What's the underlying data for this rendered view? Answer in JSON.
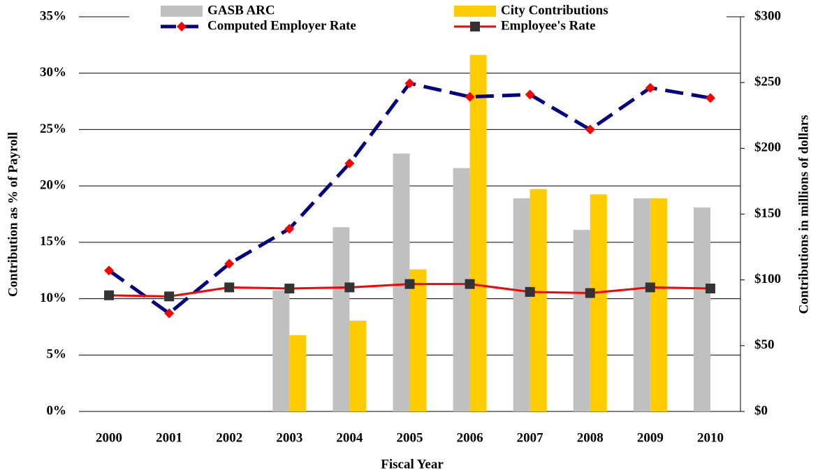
{
  "chart_data": {
    "type": "bar",
    "categories": [
      "2000",
      "2001",
      "2002",
      "2003",
      "2004",
      "2005",
      "2006",
      "2007",
      "2008",
      "2009",
      "2010"
    ],
    "xlabel": "Fiscal Year",
    "ylabel": "Contribution as % of Payroll",
    "y2label": "Contributions in millions of dollars",
    "ylim": [
      0,
      35
    ],
    "yticks": [
      {
        "value": 0,
        "label": "0%"
      },
      {
        "value": 5,
        "label": "5%"
      },
      {
        "value": 10,
        "label": "10%"
      },
      {
        "value": 15,
        "label": "15%"
      },
      {
        "value": 20,
        "label": "20%"
      },
      {
        "value": 25,
        "label": "25%"
      },
      {
        "value": 30,
        "label": "30%"
      },
      {
        "value": 35,
        "label": "35%"
      }
    ],
    "y2lim": [
      0,
      300
    ],
    "y2ticks": [
      {
        "value": 0,
        "label": "$0"
      },
      {
        "value": 50,
        "label": "$50"
      },
      {
        "value": 100,
        "label": "$100"
      },
      {
        "value": 150,
        "label": "$150"
      },
      {
        "value": 200,
        "label": "$200"
      },
      {
        "value": 250,
        "label": "$250"
      },
      {
        "value": 300,
        "label": "$300"
      }
    ],
    "grid": true,
    "legend": "top",
    "series": [
      {
        "name": "GASB ARC",
        "type": "bar",
        "axis": "y2",
        "color": "#c0c0c0",
        "values": [
          null,
          null,
          null,
          92,
          140,
          196,
          185,
          162,
          138,
          162,
          155
        ]
      },
      {
        "name": "City Contributions",
        "type": "bar",
        "axis": "y2",
        "color": "#ffcc00",
        "values": [
          null,
          null,
          null,
          58,
          69,
          108,
          271,
          169,
          165,
          162,
          null
        ]
      },
      {
        "name": "Computed Employer Rate",
        "type": "line",
        "color": "#000080",
        "marker_color": "#ff0000",
        "marker": "diamond",
        "dashed": true,
        "values": [
          12.5,
          8.7,
          13.1,
          16.2,
          22.0,
          29.1,
          27.9,
          28.1,
          25.0,
          28.7,
          27.8
        ]
      },
      {
        "name": "Employee's Rate",
        "type": "line",
        "color": "#ff0000",
        "marker_color": "#333333",
        "marker": "square",
        "dashed": false,
        "values": [
          10.3,
          10.2,
          11.0,
          10.9,
          11.0,
          11.3,
          11.3,
          10.6,
          10.5,
          11.0,
          10.9
        ]
      }
    ]
  }
}
